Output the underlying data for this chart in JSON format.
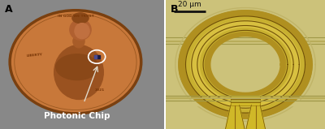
{
  "fig_width": 4.0,
  "fig_height": 1.59,
  "dpi": 100,
  "panel_A_label": "A",
  "panel_B_label": "B",
  "panel_A_sublabel": "Photonic Chip",
  "panel_B_scalebar": "20 μm",
  "bg_color": "#ffffff",
  "gray_bg": "#888888",
  "coin_color": "#c8783a",
  "coin_edge_color": "#7a4010",
  "lincoln_color": "#a85c28",
  "chip_bg_color": "#2a2a50",
  "chip_fg_color": "#5a5aaa",
  "circle_annot_color": "#e8e0d0",
  "arrow_color": "#e0d8c8",
  "label_fontsize": 9,
  "sublabel_fontsize": 7.5,
  "scalebar_fontsize": 6.5,
  "substrate_color": "#ccc27a",
  "substrate_dark": "#b8ae60",
  "gold_bright": "#d4b830",
  "gold_mid": "#c8a820",
  "gold_dark": "#a08010",
  "gold_shadow": "#786008",
  "ring_bg": "#c0b870",
  "waveguide_thin": "#c4b468",
  "bottom_taper_color": "#d0b828"
}
